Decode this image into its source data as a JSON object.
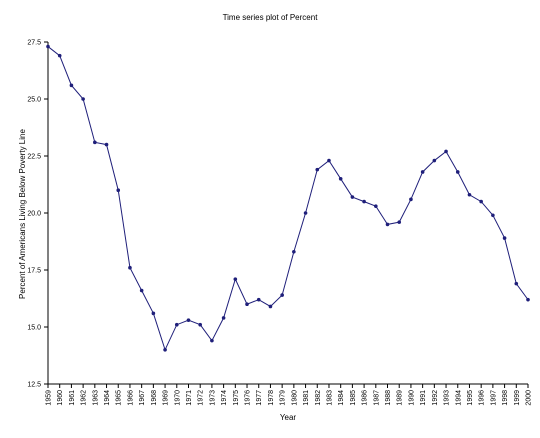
{
  "chart_data": {
    "type": "line",
    "title": "Time series plot of Percent",
    "xlabel": "Year",
    "ylabel": "Percent of Americans Living Below Poverty Line",
    "ylim": [
      12.5,
      27.5
    ],
    "yticks": [
      "12.5",
      "15.0",
      "17.5",
      "20.0",
      "22.5",
      "25.0",
      "27.5"
    ],
    "categories": [
      "1959",
      "1960",
      "1961",
      "1962",
      "1963",
      "1964",
      "1965",
      "1966",
      "1967",
      "1968",
      "1969",
      "1970",
      "1971",
      "1972",
      "1973",
      "1974",
      "1975",
      "1976",
      "1977",
      "1978",
      "1979",
      "1980",
      "1981",
      "1982",
      "1983",
      "1984",
      "1985",
      "1986",
      "1987",
      "1988",
      "1989",
      "1990",
      "1991",
      "1992",
      "1993",
      "1994",
      "1995",
      "1996",
      "1997",
      "1998",
      "1999",
      "2000"
    ],
    "values": [
      27.3,
      26.9,
      25.6,
      25.0,
      23.1,
      23.0,
      21.0,
      17.6,
      16.6,
      15.6,
      14.0,
      15.1,
      15.3,
      15.1,
      14.4,
      15.4,
      17.1,
      16.0,
      16.2,
      15.9,
      16.4,
      18.3,
      20.0,
      21.9,
      22.3,
      21.5,
      20.7,
      20.5,
      20.3,
      19.5,
      19.6,
      20.6,
      21.8,
      22.3,
      22.7,
      21.8,
      20.8,
      20.5,
      19.9,
      18.9,
      16.9,
      16.2
    ],
    "grid": false,
    "colors": {
      "line": "#1f1f7a",
      "marker": "#1f1f7a",
      "axis": "#000000"
    }
  }
}
